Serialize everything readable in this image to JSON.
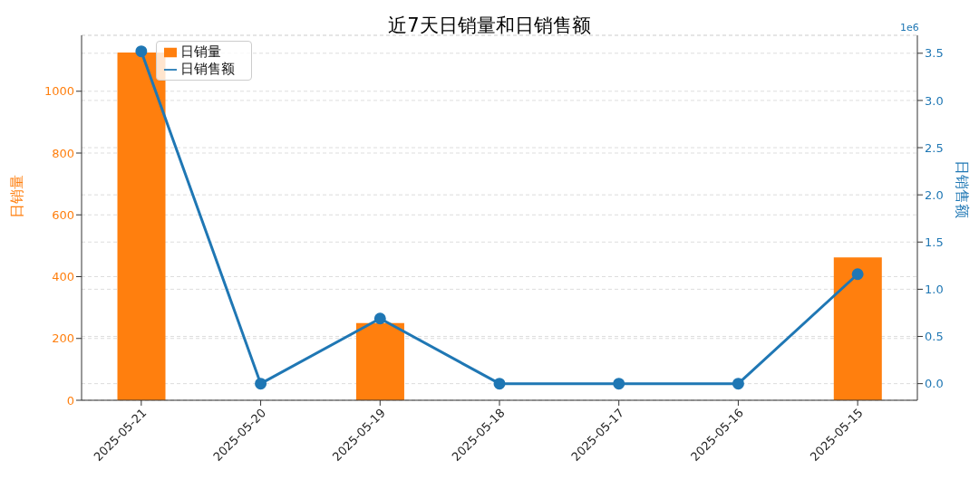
{
  "chart_data": {
    "type": "bar",
    "title": "近7天日销量和日销售额",
    "ylabel": "日销量",
    "y2label": "日销售额",
    "categories": [
      "2025-05-21",
      "2025-05-20",
      "2025-05-19",
      "2025-05-18",
      "2025-05-17",
      "2025-05-16",
      "2025-05-15"
    ],
    "series": [
      {
        "name": "日销量",
        "type": "bar",
        "color": "#ff7f0e",
        "values": [
          1125,
          0,
          250,
          0,
          0,
          0,
          462
        ]
      },
      {
        "name": "日销售额",
        "type": "line",
        "axis": "y2",
        "color": "#1f77b4",
        "marker": "circle",
        "values": [
          3.52,
          0,
          0.69,
          0,
          0,
          0,
          1.16
        ]
      }
    ],
    "ylim": [
      0,
      1181
    ],
    "yticks": [
      0,
      200,
      400,
      600,
      800,
      1000
    ],
    "y2lim": [
      -0.176,
      3.69
    ],
    "y2ticks": [
      {
        "value": 0,
        "label": "0.0"
      },
      {
        "value": 0.5,
        "label": "0.5"
      },
      {
        "value": 1,
        "label": "1.0"
      },
      {
        "value": 1.5,
        "label": "1.5"
      },
      {
        "value": 2,
        "label": "2.0"
      },
      {
        "value": 2.5,
        "label": "2.5"
      },
      {
        "value": 3,
        "label": "3.0"
      },
      {
        "value": 3.5,
        "label": "3.5"
      }
    ],
    "annotations": [
      "1e6"
    ],
    "grid": "y",
    "legend": "top left"
  }
}
